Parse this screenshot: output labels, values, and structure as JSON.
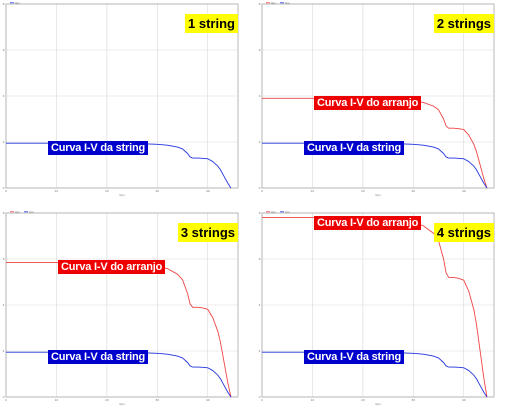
{
  "chart_data": [
    {
      "type": "line",
      "title": "1 string",
      "xlabel": "Vpv",
      "x_ticks": [
        "0",
        "10",
        "20",
        "30",
        "40"
      ],
      "y_ticks": [
        "0",
        "2",
        "4",
        "6",
        "8"
      ],
      "xlim": [
        0,
        46
      ],
      "ylim": [
        0,
        8
      ],
      "grid": true,
      "legend": "top-left",
      "annotations": [
        {
          "text": "Curva I-V da string",
          "color": "#0000cc",
          "series": "string"
        }
      ],
      "series": [
        {
          "name": "Ipv",
          "key": "string",
          "color": "#2233dd",
          "n": 1
        }
      ]
    },
    {
      "type": "line",
      "title": "2 strings",
      "xlabel": "Vpv",
      "x_ticks": [
        "0",
        "10",
        "20",
        "30",
        "40"
      ],
      "y_ticks": [
        "0",
        "2",
        "4",
        "6",
        "8"
      ],
      "xlim": [
        0,
        46
      ],
      "ylim": [
        0,
        8
      ],
      "grid": true,
      "legend": "top-left",
      "annotations": [
        {
          "text": "Curva I-V do arranjo",
          "color": "#ee0000",
          "series": "array"
        },
        {
          "text": "Curva I-V da string",
          "color": "#0000cc",
          "series": "string"
        }
      ],
      "series": [
        {
          "name": "Ipv",
          "key": "array",
          "color": "#f04444",
          "n": 2
        },
        {
          "name": "Ipv",
          "key": "string",
          "color": "#2233dd",
          "n": 1
        }
      ]
    },
    {
      "type": "line",
      "title": "3 strings",
      "xlabel": "Vpv",
      "x_ticks": [
        "0",
        "10",
        "20",
        "30",
        "40"
      ],
      "y_ticks": [
        "0",
        "2",
        "4",
        "6",
        "8"
      ],
      "xlim": [
        0,
        46
      ],
      "ylim": [
        0,
        8
      ],
      "grid": true,
      "legend": "top-left",
      "annotations": [
        {
          "text": "Curva I-V do arranjo",
          "color": "#ee0000",
          "series": "array"
        },
        {
          "text": "Curva I-V da string",
          "color": "#0000cc",
          "series": "string"
        }
      ],
      "series": [
        {
          "name": "Ipv",
          "key": "array",
          "color": "#f04444",
          "n": 3
        },
        {
          "name": "Ipv",
          "key": "string",
          "color": "#2233dd",
          "n": 1
        }
      ]
    },
    {
      "type": "line",
      "title": "4 strings",
      "xlabel": "Vpv",
      "x_ticks": [
        "0",
        "10",
        "20",
        "30",
        "40"
      ],
      "y_ticks": [
        "0",
        "2",
        "4",
        "6",
        "8"
      ],
      "xlim": [
        0,
        46
      ],
      "ylim": [
        0,
        8
      ],
      "grid": true,
      "legend": "top-left",
      "annotations": [
        {
          "text": "Curva I-V do arranjo",
          "color": "#ee0000",
          "series": "array"
        },
        {
          "text": "Curva I-V da string",
          "color": "#0000cc",
          "series": "string"
        }
      ],
      "series": [
        {
          "name": "Ipv",
          "key": "array",
          "color": "#f04444",
          "n": 4
        },
        {
          "name": "Ipv",
          "key": "string",
          "color": "#2233dd",
          "n": 1
        }
      ]
    }
  ],
  "string_iv": {
    "x": [
      0,
      5,
      10,
      15,
      20,
      25,
      30,
      32,
      34,
      35,
      36,
      36.5,
      37,
      38,
      39,
      40,
      41,
      42,
      42.5,
      43,
      43.5,
      44,
      44.6
    ],
    "y": [
      1.95,
      1.95,
      1.95,
      1.95,
      1.95,
      1.94,
      1.9,
      1.86,
      1.78,
      1.7,
      1.5,
      1.35,
      1.3,
      1.3,
      1.29,
      1.27,
      1.15,
      0.95,
      0.8,
      0.6,
      0.4,
      0.2,
      0
    ]
  }
}
